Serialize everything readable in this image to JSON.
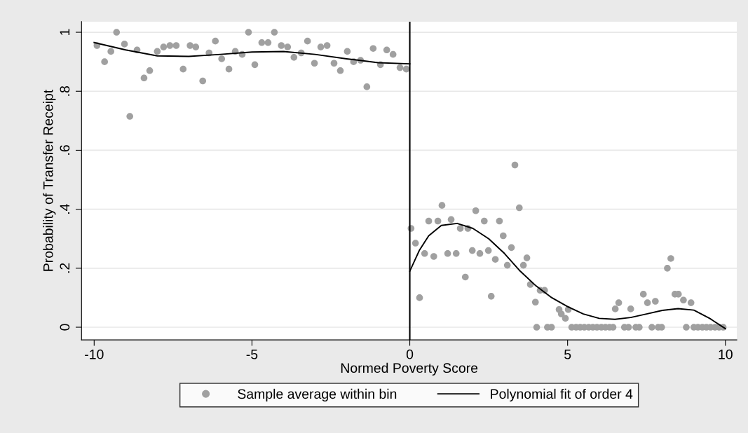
{
  "chart_data": {
    "type": "scatter",
    "xlabel": "Normed Poverty Score",
    "ylabel": "Probability of Transfer Receipt",
    "xlim": [
      -10.4,
      10.36
    ],
    "ylim": [
      -0.043,
      1.036
    ],
    "xticks": [
      {
        "value": -10,
        "label": "-10"
      },
      {
        "value": -5,
        "label": "-5"
      },
      0,
      5,
      10
    ],
    "yticks": [
      0,
      {
        "value": 0.2,
        "label": ".2"
      },
      {
        "value": 0.4,
        "label": ".4"
      },
      {
        "value": 0.6,
        "label": ".6"
      },
      {
        "value": 0.8,
        "label": ".8"
      },
      1
    ],
    "grid": "y",
    "legend": "bottom",
    "marker": "circle",
    "ref_lines": [
      {
        "axis": "x",
        "value": 0,
        "color": "#000000"
      }
    ],
    "series": [
      {
        "name": "Sample average within bin",
        "color": "#a0a0a0",
        "x": [
          -9.91,
          -9.67,
          -9.47,
          -9.29,
          -9.04,
          -8.87,
          -8.64,
          -8.42,
          -8.24,
          -8.0,
          -7.8,
          -7.6,
          -7.4,
          -7.18,
          -6.96,
          -6.78,
          -6.56,
          -6.36,
          -6.16,
          -5.96,
          -5.73,
          -5.53,
          -5.31,
          -5.11,
          -4.91,
          -4.69,
          -4.49,
          -4.29,
          -4.07,
          -3.87,
          -3.67,
          -3.44,
          -3.24,
          -3.02,
          -2.82,
          -2.62,
          -2.4,
          -2.2,
          -1.98,
          -1.78,
          -1.56,
          -1.36,
          -1.16,
          -0.93,
          -0.73,
          -0.53,
          -0.31,
          -0.11,
          0.04,
          0.18,
          0.31,
          0.47,
          0.6,
          0.76,
          0.89,
          1.02,
          1.2,
          1.31,
          1.47,
          1.6,
          1.76,
          1.84,
          1.98,
          2.09,
          2.22,
          2.36,
          2.49,
          2.58,
          2.71,
          2.84,
          2.96,
          3.09,
          3.22,
          3.33,
          3.47,
          3.6,
          3.71,
          3.82,
          3.98,
          4.02,
          4.13,
          4.27,
          4.36,
          4.49,
          4.73,
          4.8,
          4.93,
          5.02,
          5.13,
          5.27,
          5.4,
          5.53,
          5.67,
          5.8,
          5.93,
          6.07,
          6.2,
          6.33,
          6.44,
          6.51,
          6.62,
          6.8,
          6.93,
          7.0,
          7.16,
          7.27,
          7.4,
          7.53,
          7.67,
          7.78,
          7.87,
          7.98,
          8.16,
          8.27,
          8.4,
          8.51,
          8.67,
          8.76,
          8.91,
          9.0,
          9.13,
          9.27,
          9.4,
          9.53,
          9.67,
          9.8,
          9.93
        ],
        "values": [
          0.955,
          0.9,
          0.935,
          1.0,
          0.96,
          0.715,
          0.94,
          0.845,
          0.87,
          0.935,
          0.95,
          0.955,
          0.955,
          0.875,
          0.955,
          0.95,
          0.835,
          0.93,
          0.97,
          0.91,
          0.875,
          0.935,
          0.925,
          1.0,
          0.89,
          0.965,
          0.965,
          1.0,
          0.955,
          0.95,
          0.915,
          0.93,
          0.97,
          0.895,
          0.95,
          0.955,
          0.895,
          0.87,
          0.935,
          0.9,
          0.905,
          0.815,
          0.945,
          0.89,
          0.94,
          0.925,
          0.88,
          0.875,
          0.335,
          0.285,
          0.1,
          0.25,
          0.36,
          0.24,
          0.36,
          0.413,
          0.25,
          0.365,
          0.25,
          0.335,
          0.17,
          0.335,
          0.26,
          0.395,
          0.25,
          0.36,
          0.26,
          0.105,
          0.23,
          0.36,
          0.31,
          0.21,
          0.27,
          0.55,
          0.405,
          0.21,
          0.235,
          0.145,
          0.085,
          0,
          0.125,
          0.125,
          0,
          0,
          0.06,
          0.045,
          0.03,
          0.06,
          0,
          0,
          0,
          0,
          0,
          0,
          0,
          0,
          0,
          0,
          0,
          0.062,
          0.083,
          0,
          0,
          0.062,
          0,
          0,
          0.112,
          0.083,
          0,
          0.088,
          0,
          0,
          0.2,
          0.233,
          0.112,
          0.112,
          0.092,
          0,
          0.083,
          0,
          0,
          0,
          0,
          0,
          0,
          0,
          0
        ]
      },
      {
        "name": "Polynomial fit of order 4",
        "type": "line",
        "color": "#000000",
        "marker": "none",
        "x": [
          -10,
          -9,
          -8,
          -7,
          -6,
          -5,
          -4,
          -3,
          -2,
          -1,
          0,
          null,
          0,
          0.3,
          0.6,
          1,
          1.5,
          2,
          2.5,
          3,
          3.5,
          4,
          4.5,
          5,
          5.5,
          6,
          6.5,
          7,
          7.5,
          8,
          8.5,
          9,
          9.5,
          10
        ],
        "values": [
          0.965,
          0.94,
          0.92,
          0.918,
          0.925,
          0.933,
          0.935,
          0.925,
          0.91,
          0.897,
          0.893,
          null,
          0.19,
          0.26,
          0.31,
          0.345,
          0.352,
          0.335,
          0.3,
          0.25,
          0.19,
          0.14,
          0.1,
          0.07,
          0.045,
          0.03,
          0.027,
          0.033,
          0.045,
          0.057,
          0.063,
          0.058,
          0.03,
          -0.005
        ]
      }
    ]
  }
}
